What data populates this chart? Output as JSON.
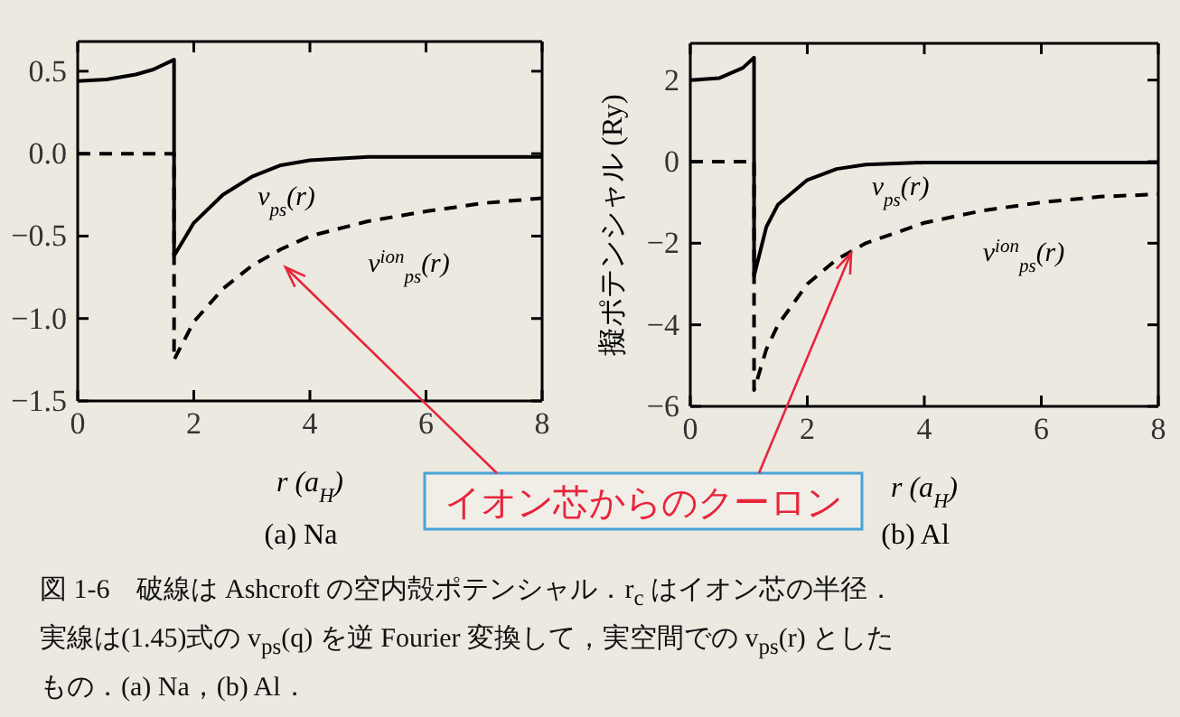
{
  "chart_data": [
    {
      "type": "line",
      "title": "(a) Na",
      "xlabel": "r (a$_{H}$)",
      "xlim": [
        0,
        8
      ],
      "xticks": [
        0,
        2,
        4,
        6,
        8
      ],
      "ylim": [
        -1.5,
        0.68
      ],
      "yticks": [
        0.5,
        {
          "value": 0,
          "label": "0.0"
        },
        {
          "value": -0.5,
          "label": "−0.5"
        },
        {
          "value": -1,
          "label": "−1.0"
        },
        {
          "value": -1.5,
          "label": "−1.5"
        }
      ],
      "series": [
        {
          "name": "v$_{ps}$(r)",
          "color": "#000000",
          "line_style": "solid",
          "x": [
            0,
            0.5,
            1,
            1.3,
            1.66,
            1.66,
            2,
            2.5,
            3,
            3.5,
            4,
            5,
            6,
            8
          ],
          "values": [
            0.44,
            0.45,
            0.48,
            0.51,
            0.57,
            -0.62,
            -0.42,
            -0.25,
            -0.14,
            -0.07,
            -0.04,
            -0.02,
            -0.02,
            -0.02
          ]
        },
        {
          "name": "v$^{ion}$$_{ps}$(r)",
          "color": "#000000",
          "line_style": "dashed",
          "x": [
            0,
            1.66,
            1.66,
            2,
            2.5,
            3,
            3.5,
            4,
            5,
            6,
            7,
            8
          ],
          "values": [
            0,
            0,
            -1.25,
            -1.02,
            -0.82,
            -0.68,
            -0.58,
            -0.5,
            -0.41,
            -0.35,
            -0.3,
            -0.27
          ]
        }
      ],
      "annotations": [
        "イオン芯からのクーロン",
        "図 1-6　破線は Ashcroft の空内殻ポテンシャル．r$_{c}$ はイオン芯の半径．実線は(1.45)式の v$_{ps}$(q) を逆 Fourier 変換して，実空間での v$_{ps}$(r) としたもの．(a) Na，(b) Al．"
      ]
    },
    {
      "type": "line",
      "title": "(b) Al",
      "xlabel": "r (a$_{H}$)",
      "ylabel": "擬ポテンシャル (Ry)",
      "xlim": [
        0,
        8
      ],
      "xticks": [
        0,
        2,
        4,
        6,
        8
      ],
      "ylim": [
        -6,
        2.9
      ],
      "yticks": [
        2,
        0,
        {
          "value": -2,
          "label": "−2"
        },
        {
          "value": -4,
          "label": "−4"
        },
        {
          "value": -6,
          "label": "−6"
        }
      ],
      "series": [
        {
          "name": "v$_{ps}$(r)",
          "color": "#000000",
          "line_style": "solid",
          "x": [
            0,
            0.5,
            0.9,
            1.09,
            1.09,
            1.3,
            1.5,
            2,
            2.5,
            3,
            4,
            8
          ],
          "values": [
            2.0,
            2.05,
            2.3,
            2.55,
            -2.8,
            -1.6,
            -1.05,
            -0.45,
            -0.18,
            -0.07,
            -0.02,
            -0.02
          ]
        },
        {
          "name": "v$^{ion}$$_{ps}$(r)",
          "color": "#000000",
          "line_style": "dashed",
          "x": [
            0,
            1.09,
            1.09,
            1.3,
            1.5,
            2,
            2.5,
            3,
            4,
            5,
            6,
            7,
            8
          ],
          "values": [
            0,
            0,
            -5.6,
            -4.6,
            -4.0,
            -3.0,
            -2.4,
            -2.0,
            -1.5,
            -1.2,
            -1.0,
            -0.86,
            -0.8
          ]
        }
      ]
    }
  ]
}
